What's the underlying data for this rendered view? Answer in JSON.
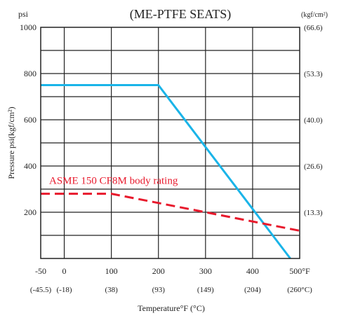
{
  "chart_data": {
    "type": "line",
    "title": "(ME-PTFE  SEATS)",
    "ylabel": "Pressure  psi(kgf/cm²)",
    "xlabel": "Temperature°F (°C)",
    "y_unit_left": "psi",
    "y_unit_right": "(kgf/cm²)",
    "xlim": [
      -50,
      500
    ],
    "ylim": [
      0,
      1000
    ],
    "grid": true,
    "x_ticks": [
      {
        "value": -50,
        "label": "-50",
        "sublabel": "(-45.5)"
      },
      {
        "value": 0,
        "label": "0",
        "sublabel": "(-18)"
      },
      {
        "value": 100,
        "label": "100",
        "sublabel": "(38)"
      },
      {
        "value": 200,
        "label": "200",
        "sublabel": "(93)"
      },
      {
        "value": 300,
        "label": "300",
        "sublabel": "(149)"
      },
      {
        "value": 400,
        "label": "400",
        "sublabel": "(204)"
      },
      {
        "value": 500,
        "label": "500°F",
        "sublabel": "(260°C)"
      }
    ],
    "y_ticks_left": [
      {
        "value": 200,
        "label": "200"
      },
      {
        "value": 400,
        "label": "400"
      },
      {
        "value": 600,
        "label": "600"
      },
      {
        "value": 800,
        "label": "800"
      },
      {
        "value": 1000,
        "label": "1000"
      }
    ],
    "y_ticks_right": [
      {
        "value": 200,
        "label": "(13.3)"
      },
      {
        "value": 400,
        "label": "(26.6)"
      },
      {
        "value": 600,
        "label": "(40.0)"
      },
      {
        "value": 800,
        "label": "(53.3)"
      },
      {
        "value": 1000,
        "label": "(66.6)"
      }
    ],
    "series": [
      {
        "color": "#1ab4e8",
        "dash": false,
        "points": [
          [
            -50,
            750
          ],
          [
            200,
            750
          ],
          [
            480,
            0
          ]
        ]
      },
      {
        "name": "ASME 150 CF8M body rating",
        "color": "#e8192c",
        "dash": true,
        "points": [
          [
            -50,
            280
          ],
          [
            100,
            280
          ],
          [
            500,
            120
          ]
        ]
      }
    ]
  }
}
